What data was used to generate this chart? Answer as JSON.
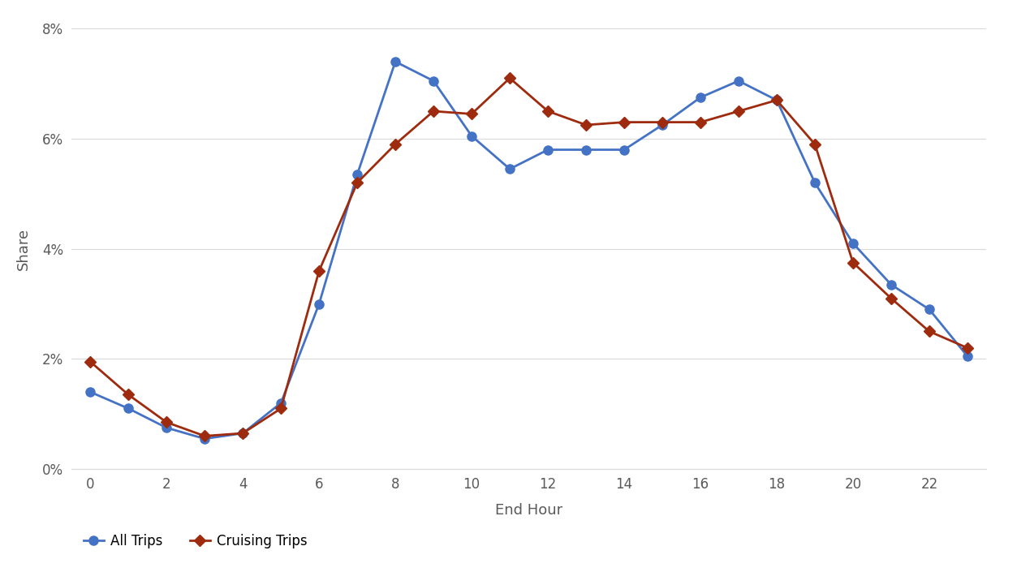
{
  "all_trips_x": [
    0,
    1,
    2,
    3,
    4,
    5,
    6,
    7,
    8,
    9,
    10,
    11,
    12,
    13,
    14,
    15,
    16,
    17,
    18,
    19,
    20,
    21,
    22,
    23
  ],
  "all_trips_y": [
    1.4,
    1.1,
    0.75,
    0.55,
    0.65,
    1.2,
    3.0,
    5.35,
    7.4,
    7.05,
    6.05,
    5.45,
    5.8,
    5.8,
    5.8,
    6.25,
    6.75,
    7.05,
    6.7,
    5.2,
    4.1,
    3.35,
    2.9,
    2.05
  ],
  "cruising_trips_x": [
    0,
    1,
    2,
    3,
    4,
    5,
    6,
    7,
    8,
    9,
    10,
    11,
    12,
    13,
    14,
    15,
    16,
    17,
    18,
    19,
    20,
    21,
    22,
    23
  ],
  "cruising_trips_y": [
    1.95,
    1.35,
    0.85,
    0.6,
    0.65,
    1.1,
    3.6,
    5.2,
    5.9,
    6.5,
    6.45,
    7.1,
    6.5,
    6.25,
    6.3,
    6.3,
    6.3,
    6.5,
    6.7,
    5.9,
    3.75,
    3.1,
    2.5,
    2.2
  ],
  "all_trips_color": "#4472C4",
  "cruising_trips_color": "#9E2B0E",
  "background_color": "#FFFFFF",
  "xlabel": "End Hour",
  "ylabel": "Share",
  "ylim": [
    0,
    8
  ],
  "xlim_min": -0.5,
  "xlim_max": 23.5,
  "yticks": [
    0,
    2,
    4,
    6,
    8
  ],
  "xticks": [
    0,
    2,
    4,
    6,
    8,
    10,
    12,
    14,
    16,
    18,
    20,
    22
  ],
  "grid_color": "#D9D9D9",
  "legend_labels": [
    "All Trips",
    "Cruising Trips"
  ],
  "marker_all": "o",
  "marker_cruising": "D",
  "linewidth": 2.0,
  "markersize_all": 8,
  "markersize_cruising": 7,
  "xlabel_fontsize": 13,
  "ylabel_fontsize": 13,
  "tick_fontsize": 12,
  "legend_fontsize": 12
}
